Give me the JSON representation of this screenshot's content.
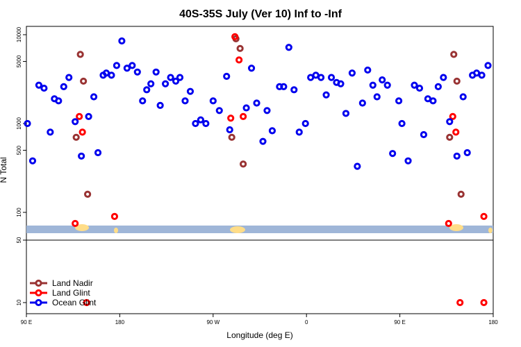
{
  "chart_data": {
    "type": "scatter",
    "title": "40S-35S July (Ver 10)   Inf to -Inf",
    "xlabel": "Longitude (deg E)",
    "ylabel": "N Total",
    "x_axis": {
      "range_deg_east": [
        90,
        450
      ],
      "ticks": [
        {
          "value": 90,
          "label": "90 E"
        },
        {
          "value": 180,
          "label": "180"
        },
        {
          "value": 270,
          "label": "90 W"
        },
        {
          "value": 360,
          "label": "0"
        },
        {
          "value": 450,
          "label": "90 E"
        },
        {
          "value": 540,
          "label": "180"
        }
      ],
      "range": [
        90,
        540
      ]
    },
    "upper_panel": {
      "scale": "log",
      "ylim": [
        50,
        15000
      ],
      "yticks": [
        {
          "value": 100,
          "label": "100"
        },
        {
          "value": 500,
          "label": "500"
        },
        {
          "value": 1000,
          "label": "1000"
        },
        {
          "value": 5000,
          "label": "5000"
        },
        {
          "value": 10000,
          "label": "10000"
        }
      ]
    },
    "lower_panel": {
      "ylim": [
        0,
        50
      ],
      "yticks": [
        {
          "value": 10,
          "label": "10"
        },
        {
          "value": 50,
          "label": "50"
        }
      ]
    },
    "legend": {
      "placement": "bottom-left",
      "entries": [
        "Land Nadir",
        "Land Glint",
        "Ocean Glint"
      ]
    },
    "colors": {
      "land_nadir": "#993333",
      "land_glint": "#ff0000",
      "ocean_glint": "#0000ee",
      "ocean_band": "#9fb6d8",
      "land_band": "#ffdd88"
    },
    "series": [
      {
        "name": "Land Nadir",
        "points": [
          [
            138,
            700
          ],
          [
            142,
            6000
          ],
          [
            145,
            3000
          ],
          [
            149,
            160
          ],
          [
            288,
            700
          ],
          [
            292,
            9000
          ],
          [
            296,
            7000
          ],
          [
            299,
            350
          ],
          [
            498,
            700
          ],
          [
            502,
            6000
          ],
          [
            505,
            3000
          ],
          [
            509,
            160
          ]
        ]
      },
      {
        "name": "Land Glint",
        "points": [
          [
            137,
            75
          ],
          [
            141,
            1200
          ],
          [
            144,
            800
          ],
          [
            148,
            10
          ],
          [
            175,
            90
          ],
          [
            287,
            1150
          ],
          [
            291,
            9500
          ],
          [
            295,
            5200
          ],
          [
            299,
            1200
          ],
          [
            497,
            75
          ],
          [
            501,
            1200
          ],
          [
            504,
            800
          ],
          [
            508,
            10
          ],
          [
            531,
            90
          ],
          [
            531,
            10
          ]
        ]
      },
      {
        "name": "Ocean Glint",
        "points": [
          [
            91,
            1000
          ],
          [
            96,
            380
          ],
          [
            102,
            2700
          ],
          [
            107,
            2500
          ],
          [
            113,
            800
          ],
          [
            117,
            1900
          ],
          [
            121,
            1800
          ],
          [
            126,
            2600
          ],
          [
            131,
            3300
          ],
          [
            137,
            1050
          ],
          [
            143,
            430
          ],
          [
            150,
            1200
          ],
          [
            155,
            2000
          ],
          [
            159,
            470
          ],
          [
            164,
            3500
          ],
          [
            167,
            3700
          ],
          [
            172,
            3500
          ],
          [
            177,
            4500
          ],
          [
            182,
            8500
          ],
          [
            187,
            4200
          ],
          [
            192,
            4500
          ],
          [
            197,
            3800
          ],
          [
            202,
            1800
          ],
          [
            206,
            2400
          ],
          [
            210,
            2800
          ],
          [
            215,
            3800
          ],
          [
            219,
            1600
          ],
          [
            224,
            2800
          ],
          [
            229,
            3300
          ],
          [
            234,
            3000
          ],
          [
            238,
            3300
          ],
          [
            243,
            1800
          ],
          [
            248,
            2300
          ],
          [
            253,
            1000
          ],
          [
            258,
            1100
          ],
          [
            263,
            1000
          ],
          [
            270,
            1800
          ],
          [
            276,
            1400
          ],
          [
            283,
            3400
          ],
          [
            286,
            850
          ],
          [
            302,
            1500
          ],
          [
            307,
            4200
          ],
          [
            312,
            1700
          ],
          [
            318,
            630
          ],
          [
            322,
            1400
          ],
          [
            327,
            830
          ],
          [
            334,
            2600
          ],
          [
            338,
            2600
          ],
          [
            343,
            7200
          ],
          [
            348,
            2400
          ],
          [
            353,
            800
          ],
          [
            359,
            1000
          ],
          [
            364,
            3300
          ],
          [
            369,
            3500
          ],
          [
            374,
            3300
          ],
          [
            379,
            2100
          ],
          [
            384,
            3300
          ],
          [
            389,
            2900
          ],
          [
            393,
            2800
          ],
          [
            398,
            1300
          ],
          [
            404,
            3700
          ],
          [
            409,
            330
          ],
          [
            414,
            1700
          ],
          [
            419,
            4000
          ],
          [
            424,
            2700
          ],
          [
            428,
            2000
          ],
          [
            433,
            3100
          ],
          [
            438,
            2700
          ],
          [
            443,
            460
          ],
          [
            449,
            1800
          ],
          [
            452,
            1000
          ],
          [
            458,
            380
          ],
          [
            464,
            2700
          ],
          [
            469,
            2500
          ],
          [
            473,
            750
          ],
          [
            477,
            1900
          ],
          [
            482,
            1800
          ],
          [
            487,
            2600
          ],
          [
            492,
            3300
          ],
          [
            498,
            1050
          ],
          [
            505,
            430
          ],
          [
            511,
            2000
          ],
          [
            515,
            470
          ],
          [
            520,
            3500
          ],
          [
            524,
            3700
          ],
          [
            529,
            3500
          ],
          [
            535,
            4500
          ]
        ]
      }
    ]
  }
}
